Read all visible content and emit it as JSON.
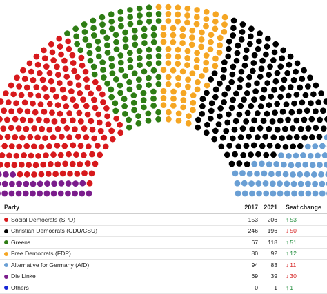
{
  "table": {
    "headers": {
      "party": "Party",
      "y2017": "2017",
      "y2021": "2021",
      "change": "Seat change"
    },
    "rows": [
      {
        "party": "Social Democrats (SPD)",
        "color": "#d7191c",
        "y2017": "153",
        "y2021": "206",
        "change": "53",
        "direction": "up"
      },
      {
        "party": "Christian Democrats (CDU/CSU)",
        "color": "#000000",
        "y2017": "246",
        "y2021": "196",
        "change": "50",
        "direction": "down"
      },
      {
        "party": "Greens",
        "color": "#2e7d14",
        "y2017": "67",
        "y2021": "118",
        "change": "51",
        "direction": "up"
      },
      {
        "party": "Free Democrats (FDP)",
        "color": "#f5a623",
        "y2017": "80",
        "y2021": "92",
        "change": "12",
        "direction": "up"
      },
      {
        "party": "Alternative for Germany (AfD)",
        "color": "#6a9fd4",
        "y2017": "94",
        "y2021": "83",
        "change": "11",
        "direction": "down"
      },
      {
        "party": "Die Linke",
        "color": "#7b1d8c",
        "y2017": "69",
        "y2021": "39",
        "change": "30",
        "direction": "down"
      },
      {
        "party": "Others",
        "color": "#1726d6",
        "y2017": "0",
        "y2021": "1",
        "change": "1",
        "direction": "up"
      }
    ]
  },
  "chart_data": {
    "type": "parliament",
    "total_seats": 735,
    "seat_order": [
      "Die Linke",
      "Social Democrats (SPD)",
      "Greens",
      "Free Democrats (FDP)",
      "Christian Democrats (CDU/CSU)",
      "Alternative for Germany (AfD)",
      "Others"
    ],
    "series": [
      {
        "name": "Social Democrats (SPD)",
        "color": "#d7191c",
        "seats_2017": 153,
        "seats_2021": 206,
        "change": 53
      },
      {
        "name": "Christian Democrats (CDU/CSU)",
        "color": "#000000",
        "seats_2017": 246,
        "seats_2021": 196,
        "change": -50
      },
      {
        "name": "Greens",
        "color": "#2e7d14",
        "seats_2017": 67,
        "seats_2021": 118,
        "change": 51
      },
      {
        "name": "Free Democrats (FDP)",
        "color": "#f5a623",
        "seats_2017": 80,
        "seats_2021": 92,
        "change": 12
      },
      {
        "name": "Alternative for Germany (AfD)",
        "color": "#6a9fd4",
        "seats_2017": 94,
        "seats_2021": 83,
        "change": -11
      },
      {
        "name": "Die Linke",
        "color": "#7b1d8c",
        "seats_2017": 69,
        "seats_2021": 39,
        "change": -30
      },
      {
        "name": "Others",
        "color": "#1726d6",
        "seats_2017": 0,
        "seats_2021": 1,
        "change": 1
      }
    ]
  }
}
